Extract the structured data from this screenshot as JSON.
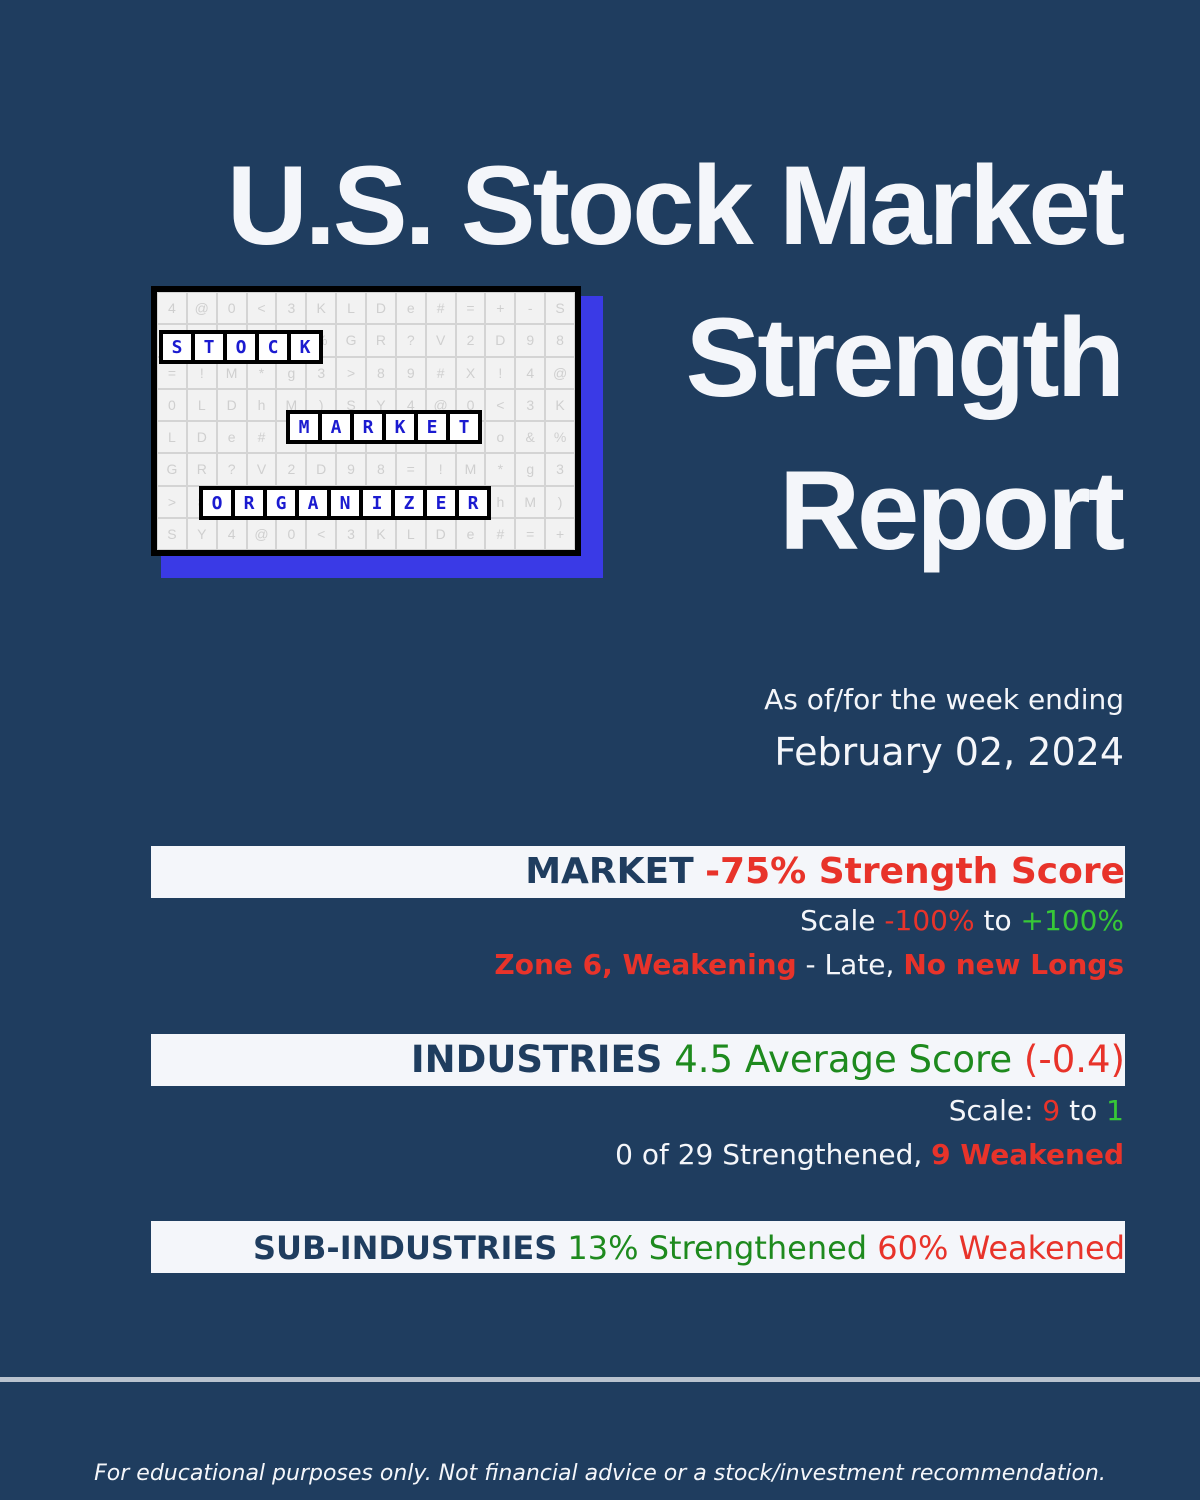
{
  "title": {
    "line1": "U.S. Stock Market",
    "line2": "Strength",
    "line3": "Report"
  },
  "logo": {
    "word1": [
      "S",
      "T",
      "O",
      "C",
      "K"
    ],
    "word2": [
      "M",
      "A",
      "R",
      "K",
      "E",
      "T"
    ],
    "word3": [
      "O",
      "R",
      "G",
      "A",
      "N",
      "I",
      "Z",
      "E",
      "R"
    ],
    "filler": [
      "4",
      "@",
      "0",
      "<",
      "3",
      "K",
      "L",
      "D",
      "e",
      "#",
      "=",
      "+",
      "-",
      "S",
      "M",
      "V",
      "?",
      "o",
      "&",
      "%",
      "G",
      "R",
      "?",
      "V",
      "2",
      "D",
      "9",
      "8",
      "=",
      "!",
      "M",
      "*",
      "g",
      "3",
      ">",
      "8",
      "9",
      "#",
      "X",
      "!",
      "4",
      "@",
      "0",
      "L",
      "D",
      "h",
      "M",
      ")",
      "S",
      "Y"
    ]
  },
  "as_of": {
    "label": "As of/for the week ending",
    "date": "February 02, 2024"
  },
  "market": {
    "label": "MARKET",
    "score": "-75% Strength Score",
    "scale_prefix": "Scale",
    "scale_low": "-100%",
    "scale_to": "to",
    "scale_high": "+100%",
    "zone": "Zone 6, Weakening",
    "zone_mid": " - Late, ",
    "zone_action": "No new Longs"
  },
  "industries": {
    "label": "INDUSTRIES",
    "average": "4.5 Average Score",
    "change": "(-0.4)",
    "scale_prefix": "Scale:",
    "scale_high": "9",
    "scale_to": "to",
    "scale_low": "1",
    "strengthened": "0 of 29 Strengthened, ",
    "weakened": "9 Weakened"
  },
  "sub_industries": {
    "label": "SUB-INDUSTRIES",
    "strengthened": "13% Strengthened",
    "weakened": "60% Weakened"
  },
  "disclaimer": "For educational purposes only. Not financial advice or a stock/investment recommendation.",
  "colors": {
    "background": "#1f3d5f",
    "negative": "#e8332a",
    "positive": "#1e8a1e",
    "positive_light": "#37c837",
    "logo_accent": "#3a3ae6"
  }
}
